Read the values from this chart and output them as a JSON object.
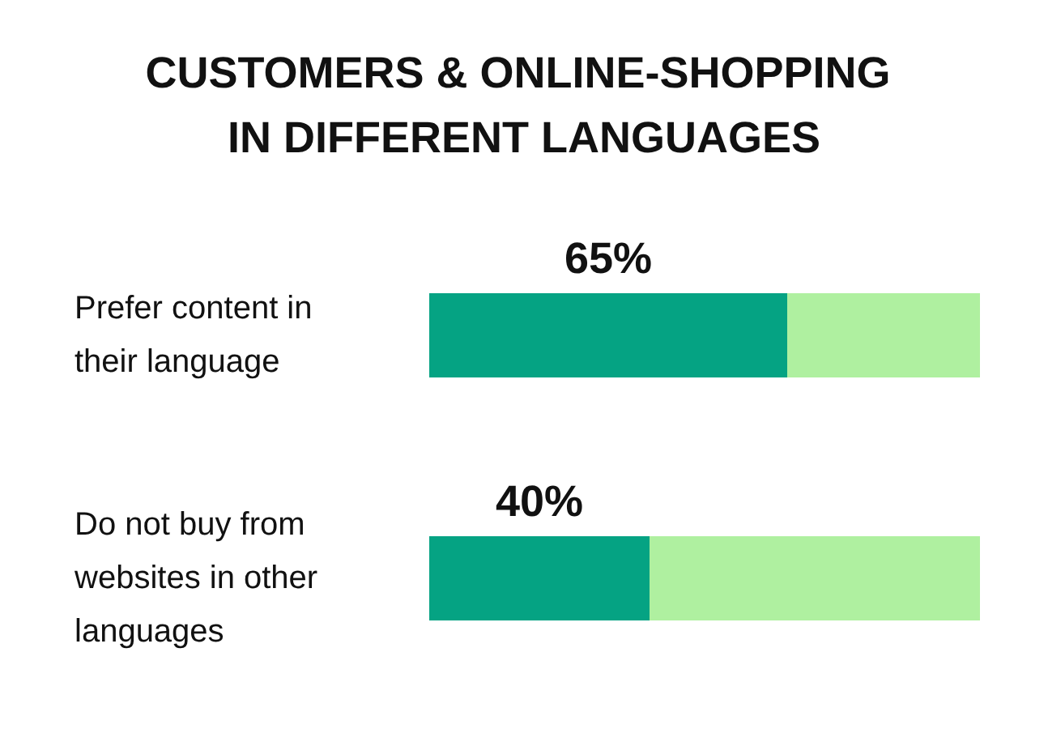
{
  "chart_data": {
    "type": "bar",
    "title": "CUSTOMERS & ONLINE-SHOPPING IN DIFFERENT LANGUAGES",
    "orientation": "horizontal",
    "stacked": true,
    "categories": [
      "Prefer content in their language",
      "Do not buy from websites in other languages"
    ],
    "series": [
      {
        "color": "#05a383",
        "values": [
          65,
          40
        ],
        "value_labels": [
          "65%",
          "40%"
        ]
      },
      {
        "color": "#aff0a0",
        "values": [
          35,
          60
        ]
      }
    ],
    "xlim": [
      0,
      100
    ],
    "tick_labels": "y"
  }
}
